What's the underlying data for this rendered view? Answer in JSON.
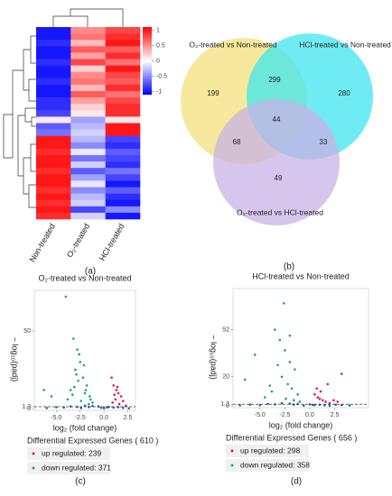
{
  "chart_data": [
    {
      "type": "heatmap",
      "label": "(a)",
      "columns": [
        "Non-treated",
        "O₂-treated",
        "HCl-treated"
      ],
      "values": [
        [
          -1,
          0.5,
          0.8
        ],
        [
          -1,
          0.6,
          0.9
        ],
        [
          -0.9,
          0.3,
          1
        ],
        [
          -1,
          0.7,
          0.7
        ],
        [
          -1,
          0.4,
          0.9
        ],
        [
          -0.9,
          0.8,
          0.6
        ],
        [
          -1,
          0.2,
          1
        ],
        [
          -1,
          0.5,
          0.8
        ],
        [
          -0.9,
          0.6,
          0.7
        ],
        [
          -1,
          0.3,
          0.9
        ],
        [
          -1,
          0.7,
          0.6
        ],
        [
          -0.9,
          0.4,
          0.8
        ],
        [
          -0.9,
          0.2,
          0.9
        ],
        [
          -0.8,
          0.1,
          0.9
        ],
        [
          0.1,
          -0.4,
          0.1
        ],
        [
          -0.7,
          -0.3,
          1
        ],
        [
          -0.6,
          -0.2,
          1
        ],
        [
          1,
          -0.3,
          -0.8
        ],
        [
          1,
          -0.5,
          -0.9
        ],
        [
          0.9,
          -0.1,
          -0.7
        ],
        [
          1,
          -0.6,
          -0.8
        ],
        [
          1,
          -0.2,
          -0.9
        ],
        [
          0.9,
          -0.7,
          -0.6
        ],
        [
          1,
          -0.4,
          -0.8
        ],
        [
          1,
          -0.1,
          -1
        ],
        [
          0.9,
          -0.5,
          -0.7
        ],
        [
          1,
          -0.3,
          -0.9
        ],
        [
          0.9,
          -0.2,
          -1
        ],
        [
          1,
          -0.8,
          -0.5
        ],
        [
          0.9,
          -0.2,
          -1
        ]
      ],
      "clim": [
        -1.1,
        1.1
      ],
      "colorbar_ticks": [
        1,
        0.5,
        0,
        -0.5,
        -1
      ],
      "colors": [
        "#0000ff",
        "#ffffff",
        "#ff0000"
      ]
    },
    {
      "type": "venn",
      "label": "(b)",
      "sets": [
        {
          "name": "O₂-treated vs Non-treated",
          "color": "#f3e27c"
        },
        {
          "name": "HCl-treated vs Non-treated",
          "color": "#3fe6ef"
        },
        {
          "name": "O₂-treated vs HCl-treated",
          "color": "#c8b1e6"
        }
      ],
      "regions": [
        {
          "sets": [
            0
          ],
          "value": 199
        },
        {
          "sets": [
            0,
            1
          ],
          "value": 299
        },
        {
          "sets": [
            1
          ],
          "value": 280
        },
        {
          "sets": [
            0,
            1,
            2
          ],
          "value": 44
        },
        {
          "sets": [
            0,
            2
          ],
          "value": 68
        },
        {
          "sets": [
            1,
            2
          ],
          "value": 33
        },
        {
          "sets": [
            2
          ],
          "value": 49
        }
      ]
    },
    {
      "type": "scatter",
      "label": "(c)",
      "title": "O₂-treated vs Non-treated",
      "xlabel": "log₂ (fold change)",
      "ylabel": "− log₁₀(padj)",
      "xlim": [
        -7.3,
        3.3
      ],
      "ylim": [
        -1,
        76
      ],
      "xticks": [
        {
          "value": -5,
          "label": "-5.0"
        },
        {
          "value": -2.5,
          "label": "-2.5"
        },
        {
          "value": 0,
          "label": "0.0"
        },
        {
          "value": 2.5,
          "label": "2.5"
        }
      ],
      "yticks": [
        0,
        1.3,
        50
      ],
      "threshold": 1.3,
      "series": [
        {
          "color": "#2e5fa8",
          "x": [
            -6,
            -5,
            -4.2,
            -3.5,
            -2.8,
            -2,
            -1.2,
            -0.6,
            0,
            0.5,
            1,
            1.5,
            2,
            2.6,
            -1.6,
            -0.3,
            0.3,
            -2.4
          ],
          "y": [
            0.5,
            1,
            0.8,
            1.5,
            1.2,
            2,
            1.8,
            1.5,
            0.4,
            1.2,
            0.8,
            1,
            0.6,
            0.3,
            1.1,
            0.7,
            0.9,
            0.5
          ]
        },
        {
          "color": "#1aa37a",
          "x": [
            -3.2,
            -2.8,
            -2.5,
            -3,
            -2.2,
            -1.8,
            -3.5,
            -2,
            -1.5,
            -2.7,
            -3.8,
            -2.4,
            -1.2,
            -2.9,
            -1.9,
            -3.3,
            -2.6,
            -1.6,
            -4,
            -6.3,
            -5.5,
            -2.1,
            -1.4,
            -3.1
          ],
          "y": [
            45,
            38,
            30,
            25,
            20,
            15,
            12,
            10,
            8,
            18,
            6,
            5,
            4,
            22,
            12,
            9,
            35,
            3,
            72,
            12,
            8,
            28,
            6,
            14
          ]
        },
        {
          "color": "#e8174a",
          "x": [
            0.8,
            1,
            1.3,
            1.5,
            1.8,
            2,
            1.2,
            0.9,
            1.6,
            2.3,
            1.1,
            1.4
          ],
          "y": [
            20,
            15,
            12,
            10,
            8,
            5,
            6,
            4,
            3,
            2,
            9,
            14
          ]
        }
      ],
      "legend_title": "Differential Expressed Genes ( 610 )",
      "legend": [
        {
          "label": "up regulated: 239",
          "color": "#e8174a"
        },
        {
          "label": "down regulated: 371",
          "color": "#1aa37a"
        }
      ]
    },
    {
      "type": "scatter",
      "label": "(d)",
      "title": "HCl-treated vs Non-treated",
      "xlabel": "log₂ (fold change)",
      "ylabel": "− log₁₀(padj)",
      "xlim": [
        -7.7,
        5.9
      ],
      "ylim": [
        -1,
        80
      ],
      "xticks": [
        {
          "value": -5,
          "label": "-5.0"
        },
        {
          "value": -2.5,
          "label": "-2.5"
        },
        {
          "value": 0,
          "label": "0.0"
        },
        {
          "value": 2.5,
          "label": "2.5"
        }
      ],
      "yticks": [
        0,
        1.3,
        20,
        52
      ],
      "threshold": 1.3,
      "series": [
        {
          "color": "#2e5fa8",
          "x": [
            -7,
            -6,
            -5,
            -4.2,
            -3.5,
            -2.8,
            -2,
            -1.2,
            -0.6,
            0,
            0.5,
            1,
            1.5,
            2,
            2.6,
            3.2,
            4,
            -1.6,
            0.3
          ],
          "y": [
            0.6,
            1,
            0.8,
            1.5,
            1.2,
            2,
            1.8,
            1.5,
            0.4,
            1.2,
            0.8,
            1,
            0.6,
            0.3,
            1,
            0.7,
            0.5,
            1.1,
            0.9
          ]
        },
        {
          "color": "#1aa37a",
          "x": [
            -3.5,
            -3,
            -2.5,
            -2,
            -1.5,
            -2.8,
            -2.2,
            -1.8,
            -1.2,
            -3.8,
            -4.5,
            -5.5,
            -6.5,
            -2.4,
            -1.6,
            -3.2,
            -2.6,
            -4,
            -1,
            -2
          ],
          "y": [
            52,
            45,
            38,
            30,
            25,
            20,
            15,
            12,
            8,
            10,
            6,
            35,
            18,
            5,
            4,
            28,
            70,
            14,
            3,
            48
          ]
        },
        {
          "color": "#e8174a",
          "x": [
            0.5,
            0.8,
            1,
            1.3,
            1.6,
            2,
            2.4,
            2.8,
            1.1,
            0.7,
            1.8,
            3.2
          ],
          "y": [
            8,
            6,
            5,
            4,
            3,
            2,
            4,
            3,
            10,
            12,
            15,
            22
          ]
        }
      ],
      "legend_title": "Differential Expressed Genes ( 656 )",
      "legend": [
        {
          "label": "up regulated: 298",
          "color": "#e8174a"
        },
        {
          "label": "down regulated: 358",
          "color": "#1aa37a"
        }
      ]
    }
  ]
}
